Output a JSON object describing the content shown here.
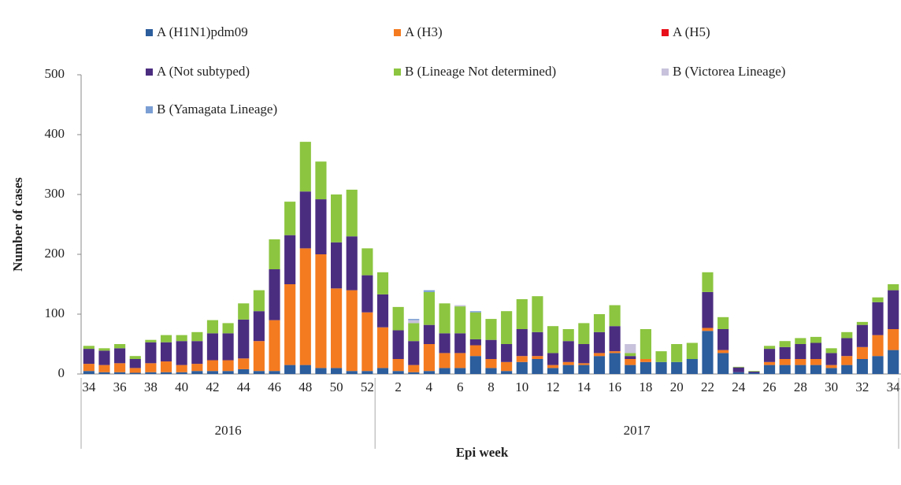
{
  "chart_data": {
    "type": "stacked_bar",
    "y_label": "Number of cases",
    "x_label": "Epi week",
    "groups": [
      "2016",
      "2017"
    ],
    "categories": [
      "34",
      null,
      "36",
      null,
      "38",
      null,
      "40",
      null,
      "42",
      null,
      "44",
      null,
      "46",
      null,
      "48",
      null,
      "50",
      null,
      "52",
      null,
      "2",
      null,
      "4",
      null,
      "6",
      null,
      "8",
      null,
      "10",
      null,
      "12",
      null,
      "14",
      null,
      "16",
      null,
      "18",
      null,
      "20",
      null,
      "22",
      null,
      "24",
      null,
      "26",
      null,
      "28",
      null,
      "30",
      null,
      "32",
      null,
      "34"
    ],
    "ylim": [
      0,
      500
    ],
    "yticks": [
      0,
      100,
      200,
      300,
      400,
      500
    ],
    "series": [
      {
        "name": "A (H1N1)pdm09",
        "color": "#2c5d9c",
        "values": [
          5,
          3,
          3,
          2,
          3,
          3,
          3,
          5,
          5,
          5,
          8,
          5,
          5,
          15,
          15,
          10,
          10,
          5,
          5,
          10,
          5,
          3,
          5,
          10,
          10,
          30,
          10,
          5,
          20,
          25,
          10,
          15,
          15,
          30,
          35,
          15,
          20,
          20,
          20,
          25,
          72,
          35,
          3,
          2,
          15,
          15,
          15,
          15,
          10,
          15,
          25,
          30,
          40
        ]
      },
      {
        "name": "A (H3)",
        "color": "#f47b20",
        "values": [
          12,
          12,
          15,
          8,
          15,
          18,
          12,
          12,
          18,
          18,
          18,
          50,
          85,
          135,
          195,
          190,
          133,
          135,
          98,
          68,
          20,
          12,
          45,
          25,
          25,
          18,
          15,
          15,
          10,
          5,
          5,
          5,
          3,
          5,
          3,
          10,
          5,
          0,
          0,
          0,
          5,
          5,
          0,
          0,
          5,
          10,
          10,
          10,
          5,
          15,
          20,
          35,
          35
        ]
      },
      {
        "name": "A (H5)",
        "color": "#e8101a",
        "values": [
          0,
          0,
          0,
          0,
          0,
          0,
          0,
          0,
          0,
          0,
          0,
          0,
          0,
          0,
          0,
          0,
          0,
          0,
          0,
          0,
          0,
          0,
          0,
          0,
          0,
          0,
          0,
          0,
          0,
          0,
          0,
          0,
          0,
          0,
          0,
          0,
          0,
          0,
          0,
          0,
          0,
          0,
          0,
          0,
          0,
          0,
          0,
          0,
          0,
          0,
          0,
          0,
          0
        ]
      },
      {
        "name": "A (Not subtyped)",
        "color": "#4b2d80",
        "values": [
          25,
          24,
          25,
          15,
          35,
          32,
          40,
          38,
          45,
          45,
          65,
          50,
          85,
          82,
          95,
          92,
          77,
          90,
          62,
          55,
          48,
          40,
          32,
          33,
          33,
          10,
          32,
          30,
          45,
          40,
          20,
          35,
          32,
          35,
          42,
          5,
          0,
          0,
          0,
          0,
          60,
          35,
          8,
          2,
          22,
          20,
          25,
          27,
          20,
          30,
          37,
          55,
          65
        ]
      },
      {
        "name": "B (Lineage Not determined)",
        "color": "#8cc540",
        "values": [
          5,
          4,
          7,
          5,
          4,
          12,
          10,
          15,
          22,
          17,
          27,
          35,
          50,
          56,
          83,
          63,
          80,
          78,
          45,
          37,
          39,
          30,
          55,
          50,
          45,
          45,
          35,
          55,
          50,
          60,
          45,
          20,
          35,
          30,
          35,
          5,
          50,
          18,
          30,
          27,
          33,
          20,
          1,
          1,
          5,
          10,
          10,
          10,
          8,
          10,
          5,
          8,
          10
        ]
      },
      {
        "name": "B (Victorea Lineage)",
        "color": "#c8c2dc",
        "values": [
          0,
          0,
          0,
          0,
          0,
          0,
          0,
          0,
          0,
          0,
          0,
          0,
          0,
          0,
          0,
          0,
          0,
          0,
          0,
          0,
          0,
          5,
          0,
          0,
          2,
          0,
          0,
          0,
          0,
          0,
          0,
          0,
          0,
          0,
          0,
          15,
          0,
          0,
          0,
          0,
          0,
          0,
          0,
          0,
          0,
          0,
          0,
          0,
          0,
          0,
          0,
          0,
          0
        ]
      },
      {
        "name": "B (Yamagata Lineage)",
        "color": "#7b9fd4",
        "values": [
          0,
          0,
          0,
          0,
          0,
          0,
          0,
          0,
          0,
          0,
          0,
          0,
          0,
          0,
          0,
          0,
          0,
          0,
          0,
          0,
          0,
          2,
          3,
          0,
          0,
          2,
          0,
          0,
          0,
          0,
          0,
          0,
          0,
          0,
          0,
          0,
          0,
          0,
          0,
          0,
          0,
          0,
          0,
          0,
          0,
          0,
          0,
          0,
          0,
          0,
          0,
          0,
          0
        ]
      }
    ]
  }
}
